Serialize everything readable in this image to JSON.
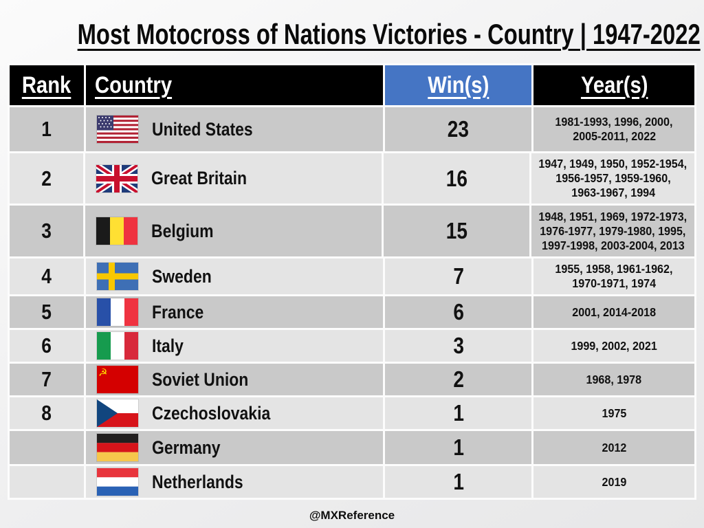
{
  "chart_data": {
    "type": "table",
    "title": "Most Motocross of Nations Victories - Country | 1947-2022",
    "columns": [
      "Rank",
      "Country",
      "Win(s)",
      "Year(s)"
    ],
    "rows": [
      {
        "rank": "1",
        "flag": "flag-united-states",
        "country": "United States",
        "wins": 23,
        "years": "1981-1993, 1996, 2000, 2005-2011, 2022",
        "years_lines": [
          "1981-1993, 1996, 2000,",
          "2005-2011, 2022"
        ]
      },
      {
        "rank": "2",
        "flag": "flag-great-britain",
        "country": "Great Britain",
        "wins": 16,
        "years": "1947, 1949, 1950, 1952-1954, 1956-1957, 1959-1960, 1963-1967, 1994",
        "years_lines": [
          "1947, 1949, 1950, 1952-1954,",
          "1956-1957, 1959-1960,",
          "1963-1967, 1994"
        ]
      },
      {
        "rank": "3",
        "flag": "flag-belgium",
        "country": "Belgium",
        "wins": 15,
        "years": "1948, 1951, 1969, 1972-1973, 1976-1977, 1979-1980, 1995, 1997-1998, 2003-2004, 2013",
        "years_lines": [
          "1948, 1951, 1969, 1972-1973,",
          "1976-1977, 1979-1980, 1995,",
          "1997-1998, 2003-2004, 2013"
        ]
      },
      {
        "rank": "4",
        "flag": "flag-sweden",
        "country": "Sweden",
        "wins": 7,
        "years": "1955, 1958, 1961-1962, 1970-1971, 1974",
        "years_lines": [
          "1955, 1958, 1961-1962,",
          "1970-1971, 1974"
        ]
      },
      {
        "rank": "5",
        "flag": "flag-france",
        "country": "France",
        "wins": 6,
        "years": "2001, 2014-2018",
        "years_lines": [
          "2001, 2014-2018"
        ]
      },
      {
        "rank": "6",
        "flag": "flag-italy",
        "country": "Italy",
        "wins": 3,
        "years": "1999, 2002, 2021",
        "years_lines": [
          "1999, 2002, 2021"
        ]
      },
      {
        "rank": "7",
        "flag": "flag-soviet-union",
        "country": "Soviet Union",
        "wins": 2,
        "years": "1968, 1978",
        "years_lines": [
          "1968, 1978"
        ]
      },
      {
        "rank": "8",
        "flag": "flag-czechoslovakia",
        "country": "Czechoslovakia",
        "wins": 1,
        "years": "1975",
        "years_lines": [
          "1975"
        ]
      },
      {
        "rank": "",
        "flag": "flag-germany",
        "country": "Germany",
        "wins": 1,
        "years": "2012",
        "years_lines": [
          "2012"
        ]
      },
      {
        "rank": "",
        "flag": "flag-netherlands",
        "country": "Netherlands",
        "wins": 1,
        "years": "2019",
        "years_lines": [
          "2019"
        ]
      }
    ]
  },
  "footer": {
    "credit": "@MXReference"
  },
  "colors": {
    "header_bg": "#000000",
    "header_text": "#ffffff",
    "wins_header_bg": "#4575C4",
    "row_dark": "#c9c9c9",
    "row_light": "#e4e4e4",
    "text": "#111111"
  }
}
